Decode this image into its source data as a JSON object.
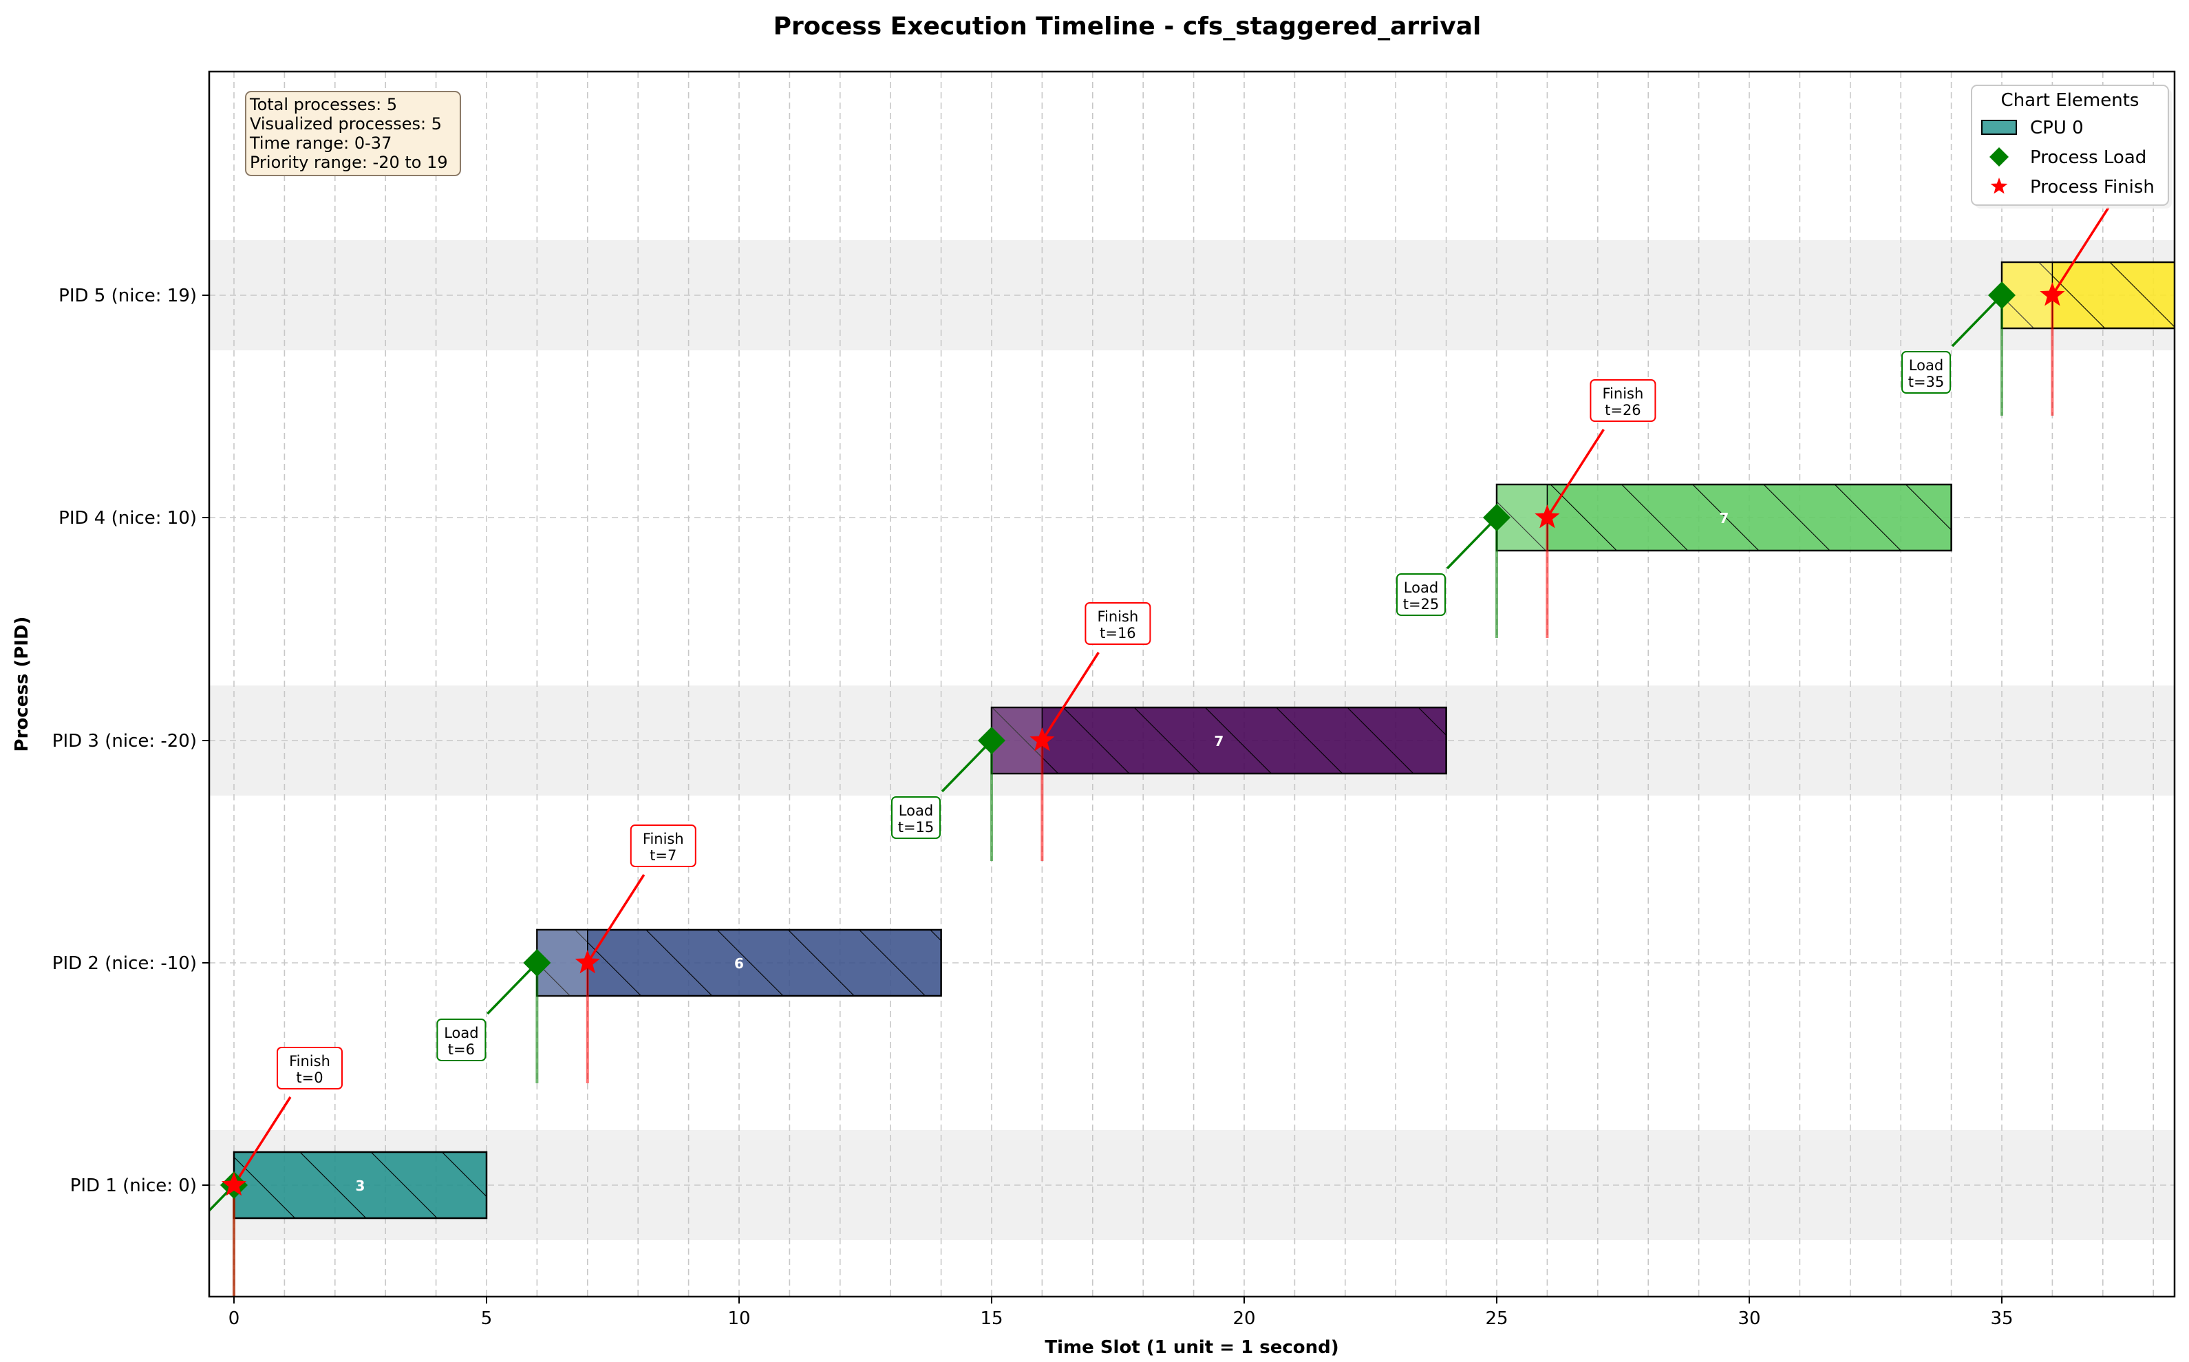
{
  "chart_data": {
    "type": "gantt",
    "title": "Process Execution Timeline - cfs_staggered_arrival",
    "xlabel": "Time Slot (1 unit = 1 second)",
    "ylabel": "Process (PID)",
    "xlim": [
      -0.5,
      38.5
    ],
    "x_ticks": [
      0,
      5,
      10,
      15,
      20,
      25,
      30,
      35
    ],
    "grid": true,
    "info_box": {
      "lines": [
        "Total processes: 5",
        "Visualized processes: 5",
        "Time range: 0-37",
        "Priority range: -20 to 19"
      ]
    },
    "legend": {
      "title": "Chart Elements",
      "position": "top-right",
      "items": [
        {
          "label": "CPU 0",
          "kind": "bar",
          "color": "#4aa7a2"
        },
        {
          "label": "Process Load",
          "kind": "diamond",
          "color": "#008000"
        },
        {
          "label": "Process Finish",
          "kind": "star",
          "color": "#ff0000"
        }
      ]
    },
    "processes": [
      {
        "label": "PID 1 (nice: 0)",
        "start": 0,
        "end": 5,
        "bar_label": "3",
        "color": "#21918c",
        "load_time": 0,
        "finish_time": 0,
        "load_text": "Load\nt=0",
        "finish_text": "Finish\nt=0",
        "shaded_row": true
      },
      {
        "label": "PID 2 (nice: -10)",
        "start": 6,
        "end": 14,
        "bar_label": "6",
        "color": "#3b528b",
        "load_time": 6,
        "finish_time": 7,
        "load_text": "Load\nt=6",
        "finish_text": "Finish\nt=7",
        "shaded_row": false
      },
      {
        "label": "PID 3 (nice: -20)",
        "start": 15,
        "end": 24,
        "bar_label": "7",
        "color": "#440154",
        "load_time": 15,
        "finish_time": 16,
        "load_text": "Load\nt=15",
        "finish_text": "Finish\nt=16",
        "shaded_row": true
      },
      {
        "label": "PID 4 (nice: 10)",
        "start": 25,
        "end": 34,
        "bar_label": "7",
        "color": "#5ec962",
        "load_time": 25,
        "finish_time": 26,
        "load_text": "Load\nt=25",
        "finish_text": "Finish\nt=26",
        "shaded_row": false
      },
      {
        "label": "PID 5 (nice: 19)",
        "start": 35,
        "end": 39,
        "bar_label": "",
        "color": "#fde725",
        "load_time": 35,
        "finish_time": 36,
        "load_text": "Load\nt=35",
        "finish_text": "",
        "shaded_row": true
      }
    ],
    "colors": {
      "load": "#008000",
      "finish": "#ff0000",
      "row_shade": "#f0f0f0",
      "grid": "#c8c8c8",
      "info_bg": "#fbf0dc",
      "info_border": "#8c7b68"
    }
  }
}
